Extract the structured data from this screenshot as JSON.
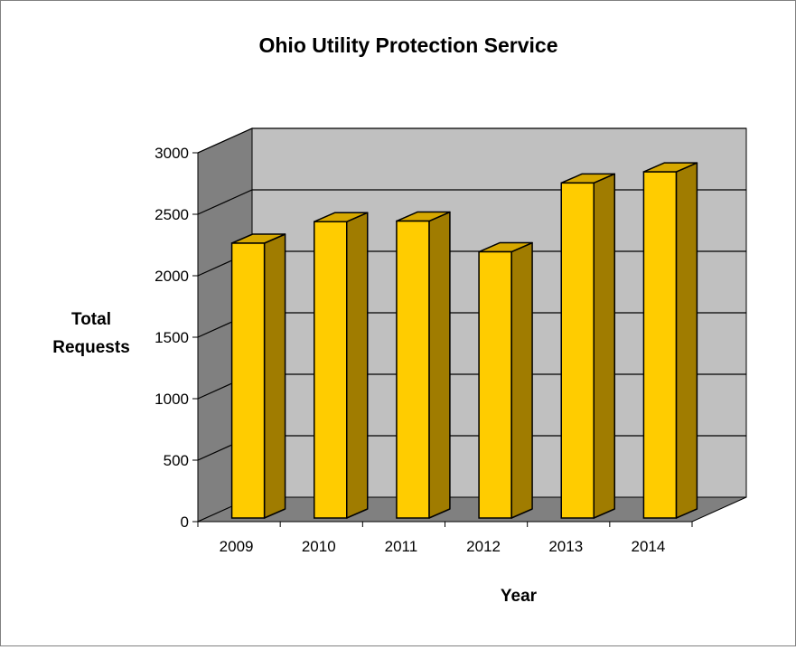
{
  "chart_data": {
    "type": "bar",
    "style": "3d-column",
    "title": "Ohio Utility Protection Service",
    "xlabel": "Year",
    "ylabel_lines": [
      "Total",
      "Requests"
    ],
    "categories": [
      "2009",
      "2010",
      "2011",
      "2012",
      "2013",
      "2014"
    ],
    "values": [
      2250,
      2425,
      2430,
      2180,
      2740,
      2830
    ],
    "y_ticks": [
      0,
      500,
      1000,
      1500,
      2000,
      2500,
      3000
    ],
    "ylim": [
      0,
      3000
    ],
    "grid": true,
    "legend": "none",
    "colors": {
      "bar_front": "#FFCC00",
      "bar_side": "#A07C00",
      "bar_top": "#D6A800",
      "back_wall": "#C0C0C0",
      "side_wall": "#808080",
      "floor": "#808080"
    }
  }
}
